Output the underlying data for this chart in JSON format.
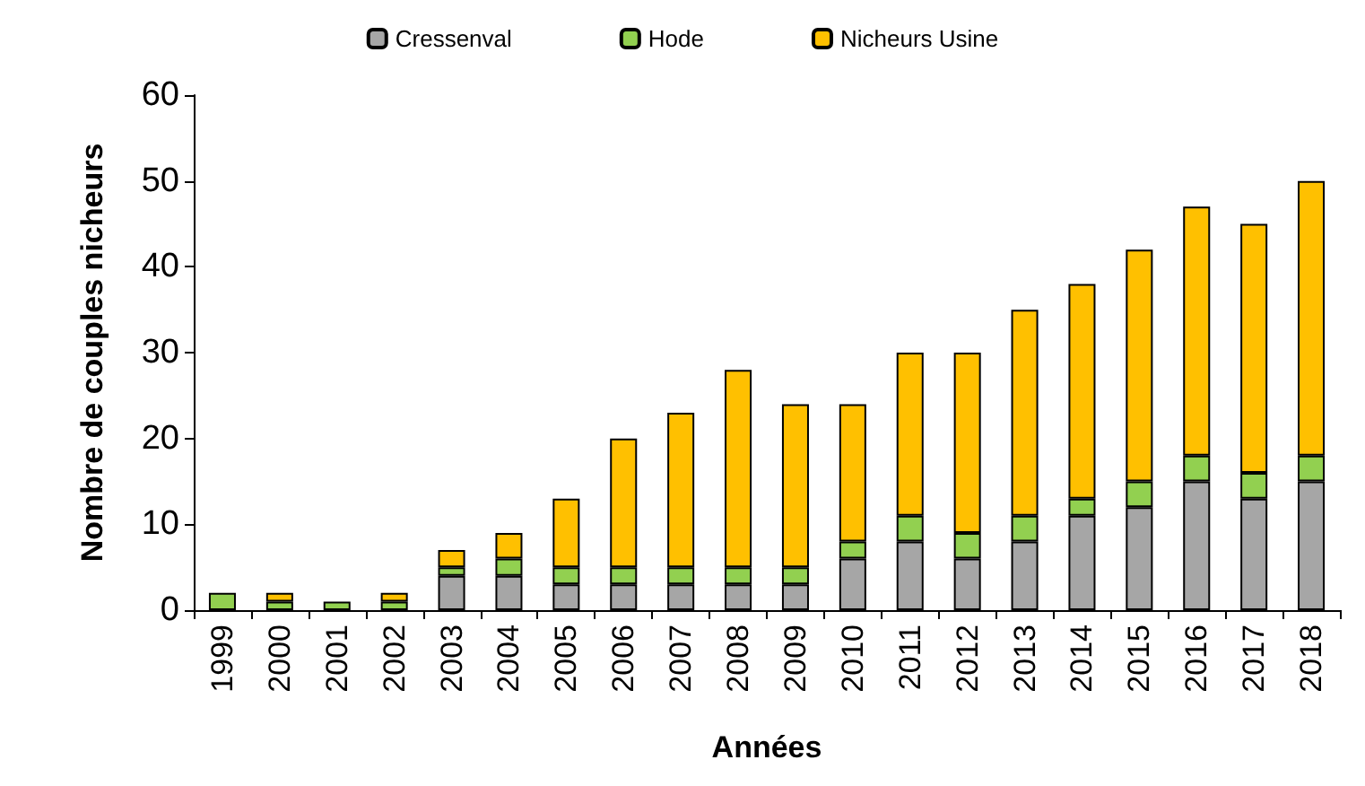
{
  "chart_data": {
    "type": "bar",
    "stacked": true,
    "xlabel": "Années",
    "ylabel": "Nombre de couples nicheurs",
    "categories": [
      "1999",
      "2000",
      "2001",
      "2002",
      "2003",
      "2004",
      "2005",
      "2006",
      "2007",
      "2008",
      "2009",
      "2010",
      "2011",
      "2012",
      "2013",
      "2014",
      "2015",
      "2016",
      "2017",
      "2018"
    ],
    "series": [
      {
        "name": "Cressenval",
        "color": "#a6a6a6",
        "values": [
          0,
          0,
          0,
          0,
          4,
          4,
          3,
          3,
          3,
          3,
          3,
          6,
          8,
          6,
          8,
          11,
          12,
          15,
          13,
          15
        ]
      },
      {
        "name": "Hode",
        "color": "#92d050",
        "values": [
          2,
          1,
          1,
          1,
          1,
          2,
          2,
          2,
          2,
          2,
          2,
          2,
          3,
          3,
          3,
          2,
          3,
          3,
          3,
          3
        ]
      },
      {
        "name": "Nicheurs Usine",
        "color": "#ffc000",
        "values": [
          0,
          1,
          0,
          1,
          2,
          3,
          8,
          15,
          18,
          23,
          19,
          16,
          19,
          21,
          24,
          25,
          27,
          29,
          29,
          32
        ]
      }
    ],
    "ylim": [
      0,
      60
    ],
    "yticks": [
      0,
      10,
      20,
      30,
      40,
      50,
      60
    ],
    "grid": false,
    "legend": "top"
  }
}
